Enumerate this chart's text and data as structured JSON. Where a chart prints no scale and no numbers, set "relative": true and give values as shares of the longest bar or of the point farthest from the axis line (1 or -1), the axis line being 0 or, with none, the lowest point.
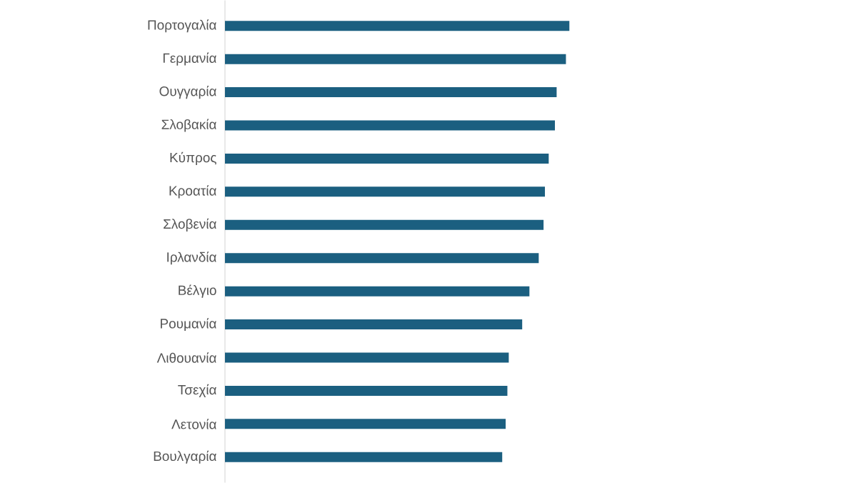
{
  "chart_data": {
    "type": "bar",
    "orientation": "horizontal",
    "relative": true,
    "categories": [
      "Πορτογαλία",
      "Γερμανία",
      "Ουγγαρία",
      "Σλοβακία",
      "Κύπρος",
      "Κροατία",
      "Σλοβενία",
      "Ιρλανδία",
      "Βέλγιο",
      "Ρουμανία",
      "Λιθουανία",
      "Τσεχία",
      "Λετονία",
      "Βουλγαρία"
    ],
    "values": [
      1,
      0.99,
      0.963,
      0.958,
      0.94,
      0.929,
      0.925,
      0.911,
      0.884,
      0.863,
      0.824,
      0.82,
      0.815,
      0.805
    ],
    "color": "#1b5f80"
  }
}
